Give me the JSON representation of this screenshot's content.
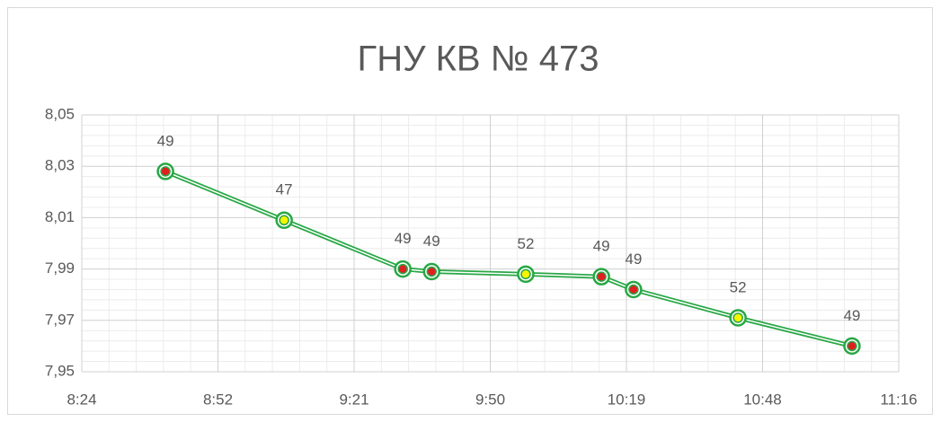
{
  "chart_data": {
    "type": "line",
    "title": "ГНУ КВ № 473",
    "x": [
      521.7,
      546.8,
      571.9,
      578,
      597.9,
      613.9,
      620.7,
      642.8,
      666.9
    ],
    "series": [
      {
        "color": "#28a745",
        "values": [
          8.028,
          8.009,
          7.99,
          7.989,
          7.988,
          7.987,
          7.982,
          7.971,
          7.96
        ],
        "point_labels": [
          49,
          47,
          49,
          49,
          52,
          49,
          49,
          52,
          49
        ],
        "marker_colors": [
          "#e02020",
          "#f5f500",
          "#e02020",
          "#e02020",
          "#f5f500",
          "#e02020",
          "#e02020",
          "#f5f500",
          "#e02020"
        ]
      }
    ],
    "xlim": [
      504,
      676.8
    ],
    "xticks": [
      {
        "value": 504,
        "label": "8:24"
      },
      {
        "value": 532.8,
        "label": "8:52"
      },
      {
        "value": 561.6,
        "label": "9:21"
      },
      {
        "value": 590.4,
        "label": "9:50"
      },
      {
        "value": 619.2,
        "label": "10:19"
      },
      {
        "value": 648,
        "label": "10:48"
      },
      {
        "value": 676.8,
        "label": "11:16"
      }
    ],
    "ylim": [
      7.95,
      8.05
    ],
    "yticks": [
      {
        "value": 7.95,
        "label": "7,95"
      },
      {
        "value": 7.97,
        "label": "7,97"
      },
      {
        "value": 7.99,
        "label": "7,99"
      },
      {
        "value": 8.01,
        "label": "8,01"
      },
      {
        "value": 8.03,
        "label": "8,03"
      },
      {
        "value": 8.05,
        "label": "8,05"
      }
    ],
    "grid": true,
    "minor_divisions": 5
  }
}
